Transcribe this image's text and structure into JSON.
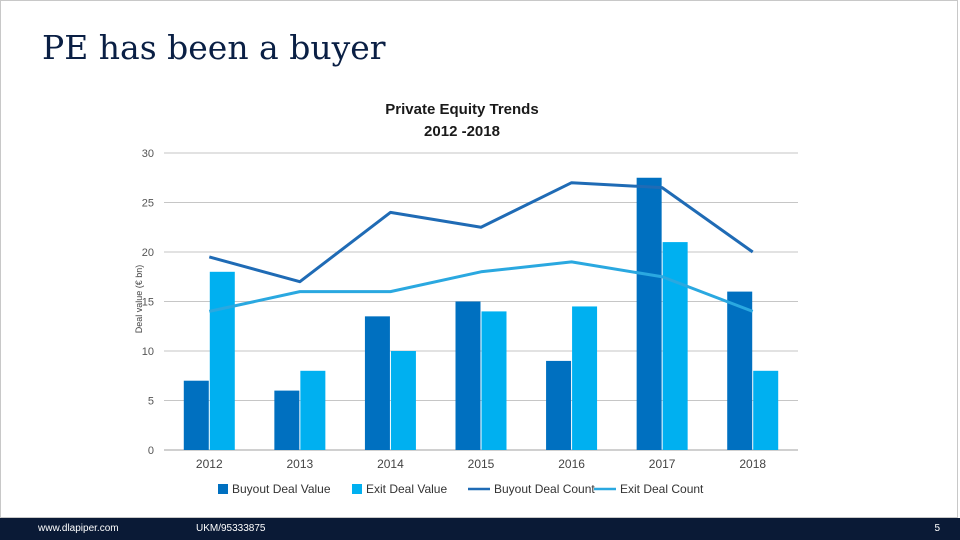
{
  "slide": {
    "title": "PE has been a buyer",
    "footer_left": "www.dlapiper.com",
    "footer_ref": "UKM/95333875",
    "page_number": "5"
  },
  "chart_data": {
    "type": "bar",
    "title": "Private Equity Trends",
    "subtitle": "2012 -2018",
    "xlabel": "",
    "ylabel": "Deal value (€ bn)",
    "ylim": [
      0,
      30
    ],
    "yticks": [
      0,
      5,
      10,
      15,
      20,
      25,
      30
    ],
    "grid": true,
    "legend_position": "bottom",
    "categories": [
      "2012",
      "2013",
      "2014",
      "2015",
      "2016",
      "2017",
      "2018"
    ],
    "series": [
      {
        "name": "Buyout Deal Value",
        "kind": "bar",
        "color": "#0070c0",
        "values": [
          7,
          6,
          13.5,
          15,
          9,
          27.5,
          16
        ]
      },
      {
        "name": "Exit Deal Value",
        "kind": "bar",
        "color": "#00b0f0",
        "values": [
          18,
          8,
          10,
          14,
          14.5,
          21,
          8
        ]
      },
      {
        "name": "Buyout Deal Count",
        "kind": "line",
        "color": "#1f6bb5",
        "values": [
          19.5,
          17,
          24,
          22.5,
          27,
          26.5,
          20
        ]
      },
      {
        "name": "Exit Deal Count",
        "kind": "line",
        "color": "#2aa8e0",
        "values": [
          14,
          16,
          16,
          18,
          19,
          17.5,
          14
        ]
      }
    ]
  }
}
